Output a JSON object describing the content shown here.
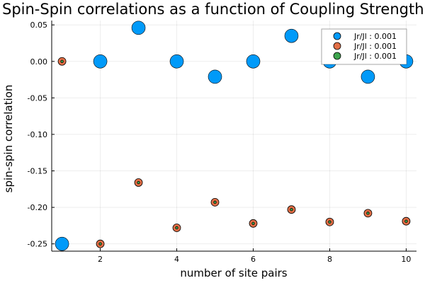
{
  "chart_data": {
    "type": "scatter",
    "title": "Spin-Spin correlations as a function of Coupling Strength",
    "xlabel": "number of site pairs",
    "ylabel": "spin-spin correlation",
    "xlim": [
      0.73,
      10.27
    ],
    "ylim": [
      -0.26,
      0.056
    ],
    "xticks": [
      2,
      4,
      6,
      8,
      10
    ],
    "yticks": [
      0.05,
      0.0,
      -0.05,
      -0.1,
      -0.15,
      -0.2,
      -0.25
    ],
    "ytick_labels": [
      "0.05",
      "0.00",
      "-0.05",
      "-0.10",
      "-0.15",
      "-0.20",
      "-0.25"
    ],
    "grid": true,
    "legend_position": "top-right",
    "series": [
      {
        "name": "Jr/Jl : 0.001",
        "color": "#009af9",
        "marker_size": "large",
        "x": [
          1,
          2,
          3,
          4,
          5,
          6,
          7,
          8,
          9,
          10
        ],
        "y": [
          -0.25,
          0.0,
          0.046,
          0.0,
          -0.021,
          0.0,
          0.035,
          0.0,
          -0.021,
          0.0
        ]
      },
      {
        "name": "Jr/Jl : 0.001",
        "color": "#e26f46",
        "marker_size": "medium",
        "x": [
          1,
          2,
          3,
          4,
          5,
          6,
          7,
          8,
          9,
          10
        ],
        "y": [
          0.0,
          -0.25,
          -0.166,
          -0.228,
          -0.193,
          -0.222,
          -0.203,
          -0.22,
          -0.208,
          -0.219
        ]
      },
      {
        "name": "Jr/Jl : 0.001",
        "color": "#3da44d",
        "marker_size": "small",
        "x": [
          1,
          2,
          3,
          4,
          5,
          6,
          7,
          8,
          9,
          10
        ],
        "y": [
          0.0,
          -0.25,
          -0.166,
          -0.228,
          -0.193,
          -0.222,
          -0.203,
          -0.22,
          -0.208,
          -0.219
        ]
      }
    ]
  }
}
